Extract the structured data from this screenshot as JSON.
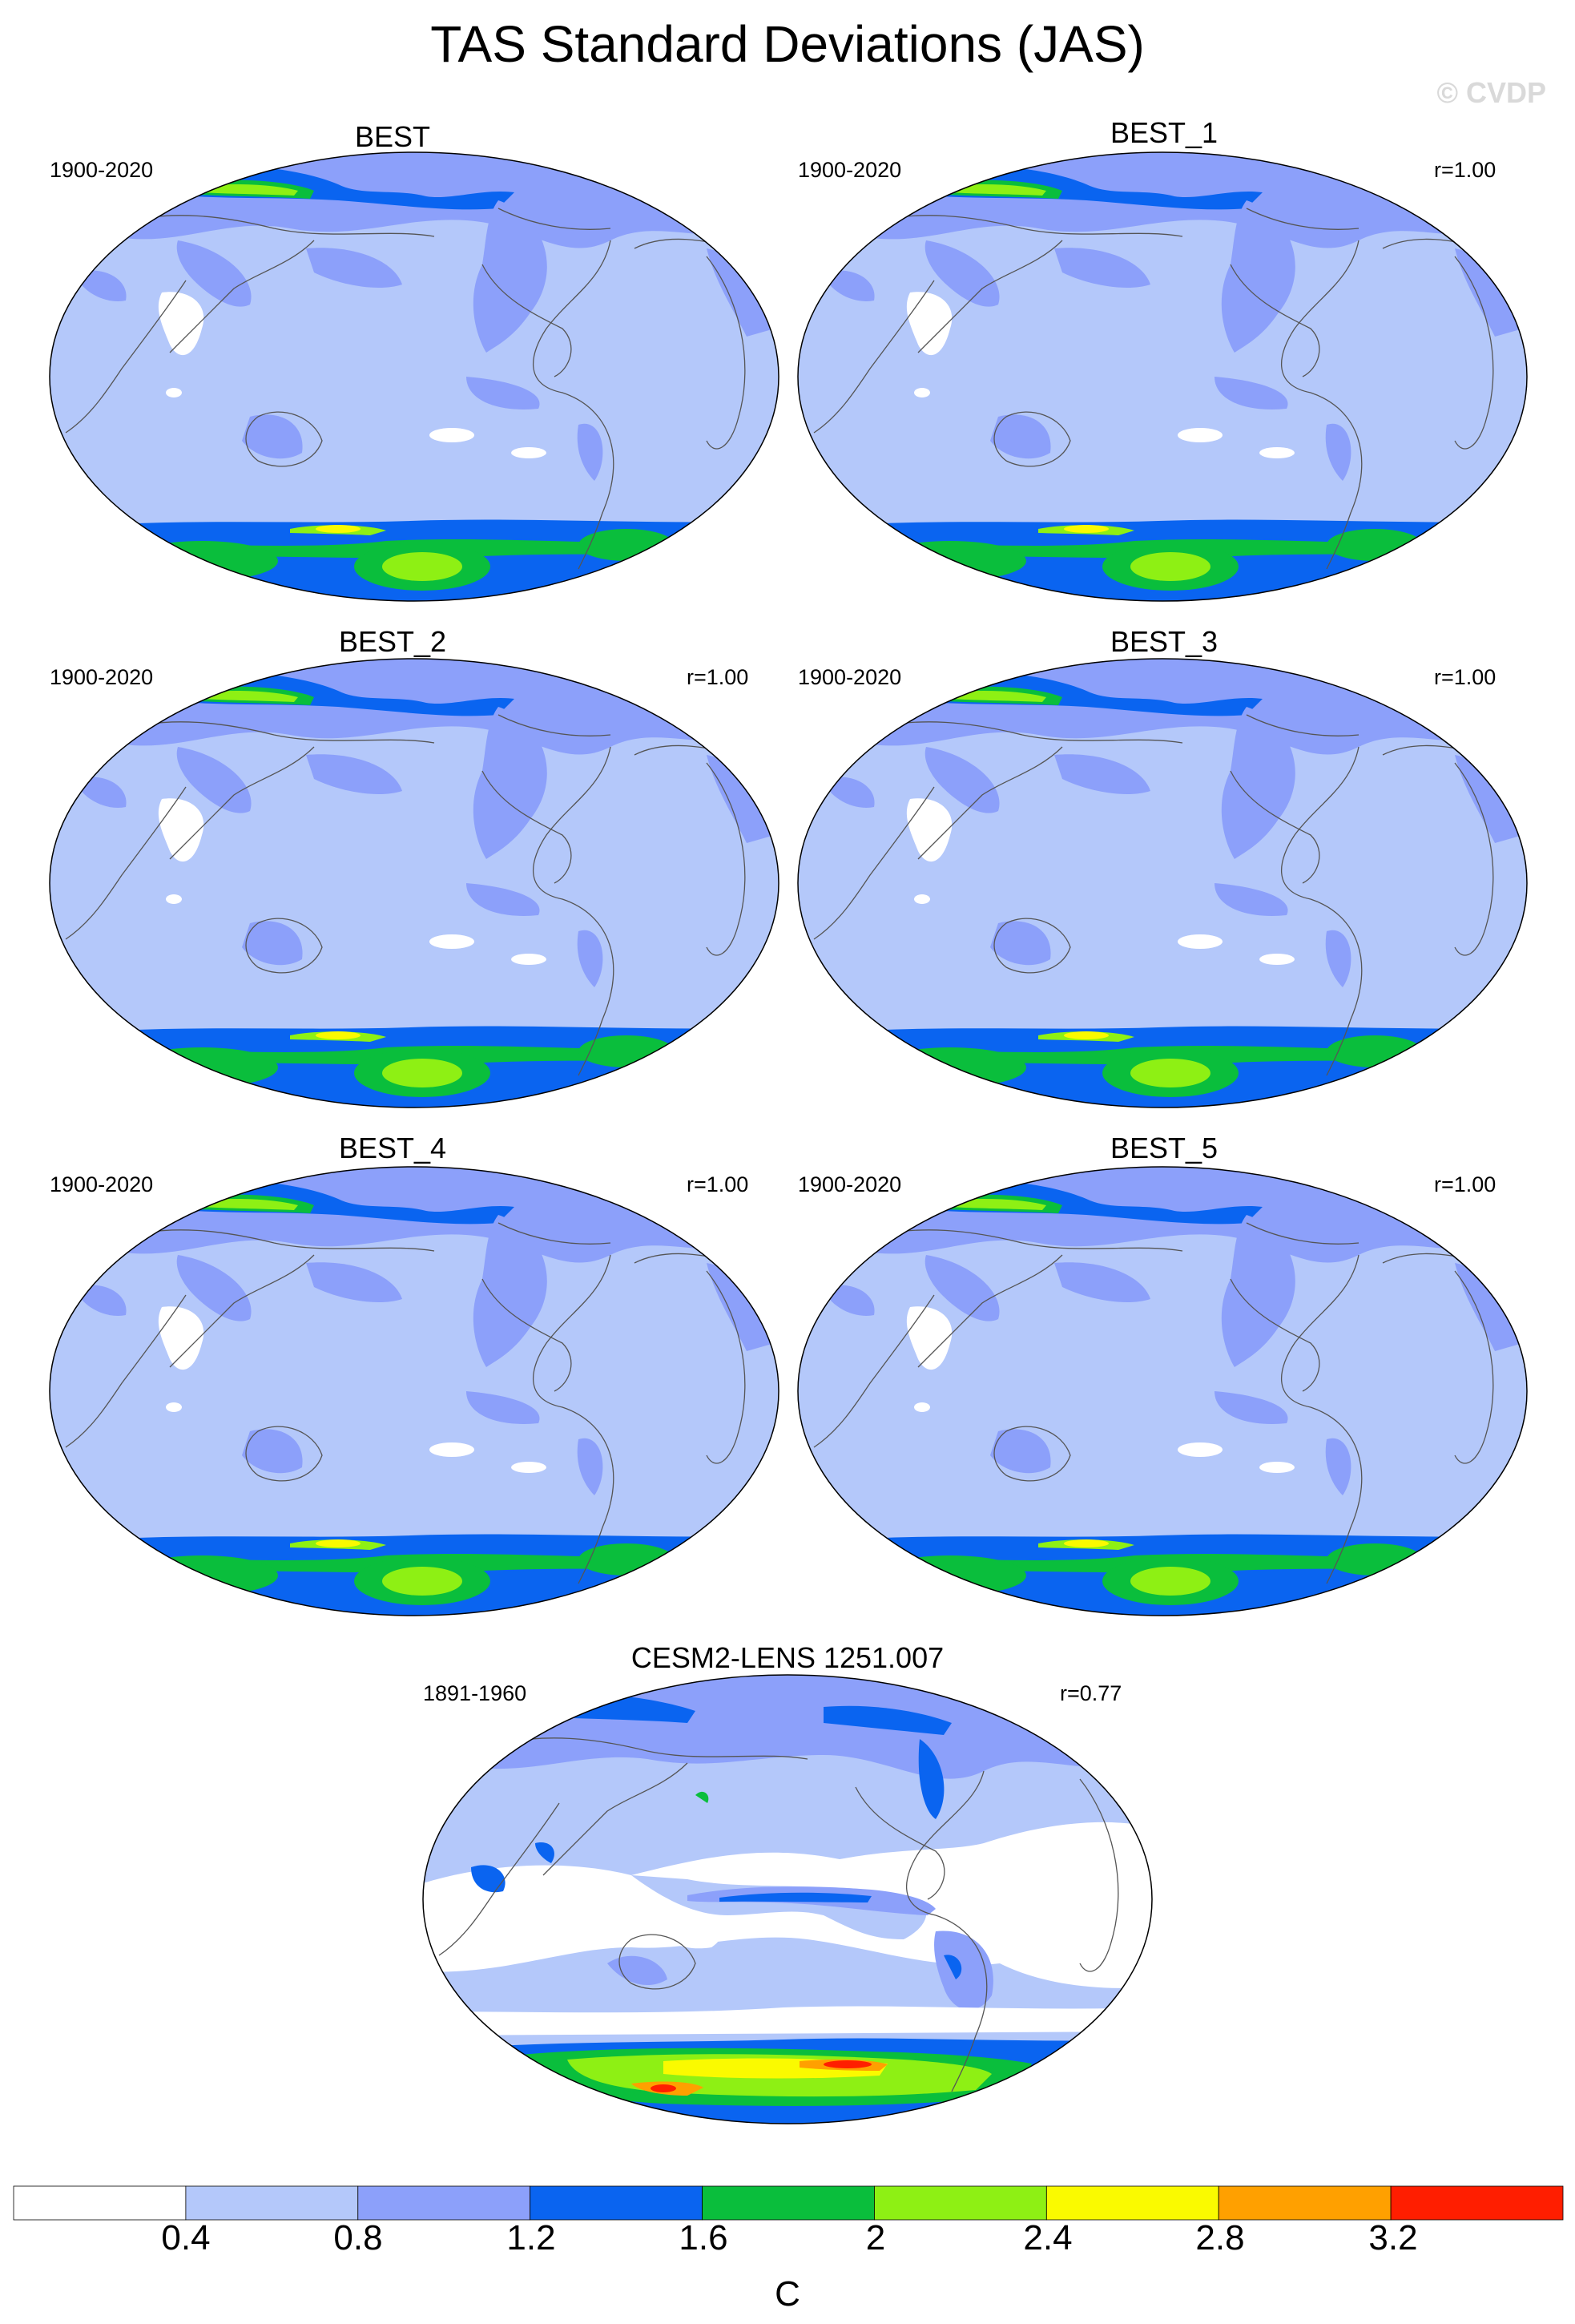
{
  "title": "TAS Standard Deviations (JAS)",
  "watermark": "© CVDP",
  "panels": [
    {
      "name": "BEST",
      "period": "1900-2020",
      "r": ""
    },
    {
      "name": "BEST_1",
      "period": "1900-2020",
      "r": "r=1.00"
    },
    {
      "name": "BEST_2",
      "period": "1900-2020",
      "r": "r=1.00"
    },
    {
      "name": "BEST_3",
      "period": "1900-2020",
      "r": "r=1.00"
    },
    {
      "name": "BEST_4",
      "period": "1900-2020",
      "r": "r=1.00"
    },
    {
      "name": "BEST_5",
      "period": "1900-2020",
      "r": "r=1.00"
    },
    {
      "name": "CESM2-LENS 1251.007",
      "period": "1891-1960",
      "r": "r=0.77"
    }
  ],
  "colorbar": {
    "units": "C",
    "levels": [
      "0.4",
      "0.8",
      "1.2",
      "1.6",
      "2",
      "2.4",
      "2.8",
      "3.2"
    ],
    "colors": [
      "#ffffff",
      "#b4c8fa",
      "#8ca0fa",
      "#0a64f0",
      "#0abe3c",
      "#8ef014",
      "#fafa00",
      "#ffa000",
      "#ff1e00"
    ]
  }
}
